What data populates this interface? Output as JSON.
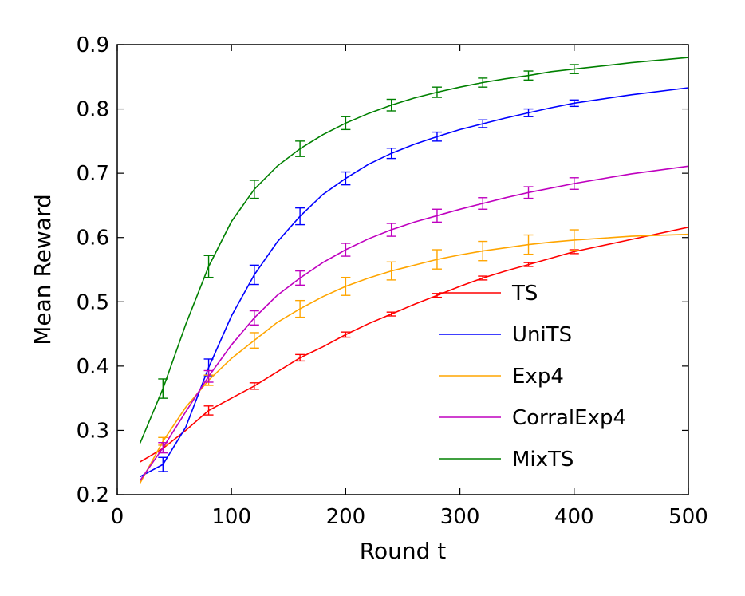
{
  "chart_data": {
    "type": "line",
    "title": "",
    "xlabel": "Round t",
    "ylabel": "Mean Reward",
    "xlim": [
      0,
      500
    ],
    "ylim": [
      0.2,
      0.9
    ],
    "xticks": [
      0,
      100,
      200,
      300,
      400,
      500
    ],
    "yticks": [
      0.2,
      0.3,
      0.4,
      0.5,
      0.6,
      0.7,
      0.8,
      0.9
    ],
    "xtick_labels": [
      "0",
      "100",
      "200",
      "300",
      "400",
      "500"
    ],
    "ytick_labels": [
      "0.2",
      "0.3",
      "0.4",
      "0.5",
      "0.6",
      "0.7",
      "0.8",
      "0.9"
    ],
    "grid": false,
    "legend_position": "center-right",
    "series": [
      {
        "name": "TS",
        "color": "#ff0000",
        "x": [
          20,
          40,
          60,
          80,
          100,
          120,
          140,
          160,
          180,
          200,
          220,
          240,
          260,
          280,
          300,
          320,
          340,
          360,
          380,
          400,
          450,
          500
        ],
        "y": [
          0.251,
          0.272,
          0.3,
          0.331,
          0.35,
          0.369,
          0.391,
          0.413,
          0.43,
          0.449,
          0.466,
          0.481,
          0.496,
          0.51,
          0.524,
          0.537,
          0.548,
          0.558,
          0.568,
          0.578,
          0.597,
          0.616
        ],
        "error_bars": [
          {
            "x": 80,
            "y": 0.331,
            "err": 0.007
          },
          {
            "x": 120,
            "y": 0.369,
            "err": 0.005
          },
          {
            "x": 160,
            "y": 0.413,
            "err": 0.005
          },
          {
            "x": 200,
            "y": 0.449,
            "err": 0.004
          },
          {
            "x": 240,
            "y": 0.481,
            "err": 0.003
          },
          {
            "x": 280,
            "y": 0.51,
            "err": 0.003
          },
          {
            "x": 320,
            "y": 0.537,
            "err": 0.003
          },
          {
            "x": 360,
            "y": 0.558,
            "err": 0.003
          },
          {
            "x": 400,
            "y": 0.578,
            "err": 0.003
          }
        ]
      },
      {
        "name": "UniTS",
        "color": "#0000ff",
        "x": [
          20,
          40,
          60,
          80,
          100,
          120,
          140,
          160,
          180,
          200,
          220,
          240,
          260,
          280,
          300,
          320,
          340,
          360,
          380,
          400,
          450,
          500
        ],
        "y": [
          0.228,
          0.247,
          0.305,
          0.398,
          0.478,
          0.542,
          0.593,
          0.633,
          0.667,
          0.692,
          0.714,
          0.731,
          0.745,
          0.757,
          0.768,
          0.777,
          0.786,
          0.794,
          0.802,
          0.809,
          0.822,
          0.833
        ],
        "error_bars": [
          {
            "x": 40,
            "y": 0.247,
            "err": 0.011
          },
          {
            "x": 80,
            "y": 0.398,
            "err": 0.013
          },
          {
            "x": 120,
            "y": 0.542,
            "err": 0.015
          },
          {
            "x": 160,
            "y": 0.633,
            "err": 0.013
          },
          {
            "x": 200,
            "y": 0.692,
            "err": 0.01
          },
          {
            "x": 240,
            "y": 0.731,
            "err": 0.008
          },
          {
            "x": 280,
            "y": 0.757,
            "err": 0.007
          },
          {
            "x": 320,
            "y": 0.777,
            "err": 0.006
          },
          {
            "x": 360,
            "y": 0.794,
            "err": 0.006
          },
          {
            "x": 400,
            "y": 0.809,
            "err": 0.005
          }
        ]
      },
      {
        "name": "Exp4",
        "color": "#ffa500",
        "x": [
          20,
          40,
          60,
          80,
          100,
          120,
          140,
          160,
          180,
          200,
          220,
          240,
          260,
          280,
          300,
          320,
          340,
          360,
          380,
          400,
          450,
          500
        ],
        "y": [
          0.218,
          0.283,
          0.336,
          0.378,
          0.412,
          0.44,
          0.468,
          0.489,
          0.508,
          0.524,
          0.537,
          0.548,
          0.557,
          0.566,
          0.573,
          0.579,
          0.584,
          0.589,
          0.593,
          0.596,
          0.602,
          0.605
        ],
        "error_bars": [
          {
            "x": 40,
            "y": 0.283,
            "err": 0.006
          },
          {
            "x": 80,
            "y": 0.378,
            "err": 0.008
          },
          {
            "x": 120,
            "y": 0.44,
            "err": 0.012
          },
          {
            "x": 160,
            "y": 0.489,
            "err": 0.013
          },
          {
            "x": 200,
            "y": 0.524,
            "err": 0.014
          },
          {
            "x": 240,
            "y": 0.548,
            "err": 0.014
          },
          {
            "x": 280,
            "y": 0.566,
            "err": 0.015
          },
          {
            "x": 320,
            "y": 0.579,
            "err": 0.015
          },
          {
            "x": 360,
            "y": 0.589,
            "err": 0.015
          },
          {
            "x": 400,
            "y": 0.596,
            "err": 0.016
          }
        ]
      },
      {
        "name": "CorralExp4",
        "color": "#bf00bf",
        "x": [
          20,
          40,
          60,
          80,
          100,
          120,
          140,
          160,
          180,
          200,
          220,
          240,
          260,
          280,
          300,
          320,
          340,
          360,
          380,
          400,
          450,
          500
        ],
        "y": [
          0.222,
          0.273,
          0.329,
          0.384,
          0.433,
          0.475,
          0.51,
          0.537,
          0.561,
          0.581,
          0.598,
          0.612,
          0.624,
          0.634,
          0.644,
          0.653,
          0.662,
          0.67,
          0.677,
          0.684,
          0.699,
          0.711
        ],
        "error_bars": [
          {
            "x": 40,
            "y": 0.273,
            "err": 0.008
          },
          {
            "x": 80,
            "y": 0.384,
            "err": 0.009
          },
          {
            "x": 120,
            "y": 0.475,
            "err": 0.011
          },
          {
            "x": 160,
            "y": 0.537,
            "err": 0.011
          },
          {
            "x": 200,
            "y": 0.581,
            "err": 0.01
          },
          {
            "x": 240,
            "y": 0.612,
            "err": 0.01
          },
          {
            "x": 280,
            "y": 0.634,
            "err": 0.01
          },
          {
            "x": 320,
            "y": 0.653,
            "err": 0.009
          },
          {
            "x": 360,
            "y": 0.67,
            "err": 0.009
          },
          {
            "x": 400,
            "y": 0.684,
            "err": 0.009
          }
        ]
      },
      {
        "name": "MixTS",
        "color": "#008000",
        "x": [
          20,
          40,
          60,
          80,
          100,
          120,
          140,
          160,
          180,
          200,
          220,
          240,
          260,
          280,
          300,
          320,
          340,
          360,
          380,
          400,
          450,
          500
        ],
        "y": [
          0.28,
          0.365,
          0.465,
          0.555,
          0.625,
          0.675,
          0.711,
          0.738,
          0.76,
          0.778,
          0.793,
          0.806,
          0.817,
          0.826,
          0.834,
          0.841,
          0.847,
          0.852,
          0.858,
          0.862,
          0.872,
          0.88
        ],
        "error_bars": [
          {
            "x": 40,
            "y": 0.365,
            "err": 0.015
          },
          {
            "x": 80,
            "y": 0.555,
            "err": 0.017
          },
          {
            "x": 120,
            "y": 0.675,
            "err": 0.014
          },
          {
            "x": 160,
            "y": 0.738,
            "err": 0.012
          },
          {
            "x": 200,
            "y": 0.778,
            "err": 0.01
          },
          {
            "x": 240,
            "y": 0.806,
            "err": 0.009
          },
          {
            "x": 280,
            "y": 0.826,
            "err": 0.008
          },
          {
            "x": 320,
            "y": 0.841,
            "err": 0.007
          },
          {
            "x": 360,
            "y": 0.852,
            "err": 0.007
          },
          {
            "x": 400,
            "y": 0.862,
            "err": 0.007
          }
        ]
      }
    ]
  }
}
